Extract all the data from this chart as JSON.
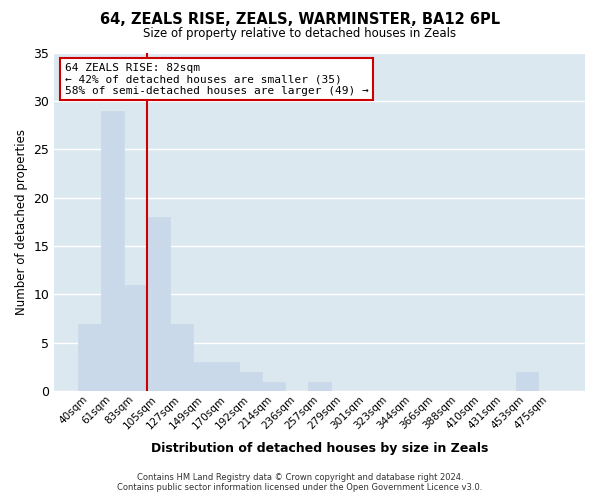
{
  "title": "64, ZEALS RISE, ZEALS, WARMINSTER, BA12 6PL",
  "subtitle": "Size of property relative to detached houses in Zeals",
  "xlabel": "Distribution of detached houses by size in Zeals",
  "ylabel": "Number of detached properties",
  "bar_color": "#c9d9ea",
  "grid_color": "#ffffff",
  "bg_color": "#dce8f0",
  "categories": [
    "40sqm",
    "61sqm",
    "83sqm",
    "105sqm",
    "127sqm",
    "149sqm",
    "170sqm",
    "192sqm",
    "214sqm",
    "236sqm",
    "257sqm",
    "279sqm",
    "301sqm",
    "323sqm",
    "344sqm",
    "366sqm",
    "388sqm",
    "410sqm",
    "431sqm",
    "453sqm",
    "475sqm"
  ],
  "values": [
    7,
    29,
    11,
    18,
    7,
    3,
    3,
    2,
    1,
    0,
    1,
    0,
    0,
    0,
    0,
    0,
    0,
    0,
    0,
    2,
    0
  ],
  "ylim": [
    0,
    35
  ],
  "yticks": [
    0,
    5,
    10,
    15,
    20,
    25,
    30,
    35
  ],
  "marker_after_idx": 2,
  "marker_color": "#cc0000",
  "annotation_title": "64 ZEALS RISE: 82sqm",
  "annotation_line1": "← 42% of detached houses are smaller (35)",
  "annotation_line2": "58% of semi-detached houses are larger (49) →",
  "annotation_box_edgecolor": "#cc0000",
  "footer_line1": "Contains HM Land Registry data © Crown copyright and database right 2024.",
  "footer_line2": "Contains public sector information licensed under the Open Government Licence v3.0."
}
